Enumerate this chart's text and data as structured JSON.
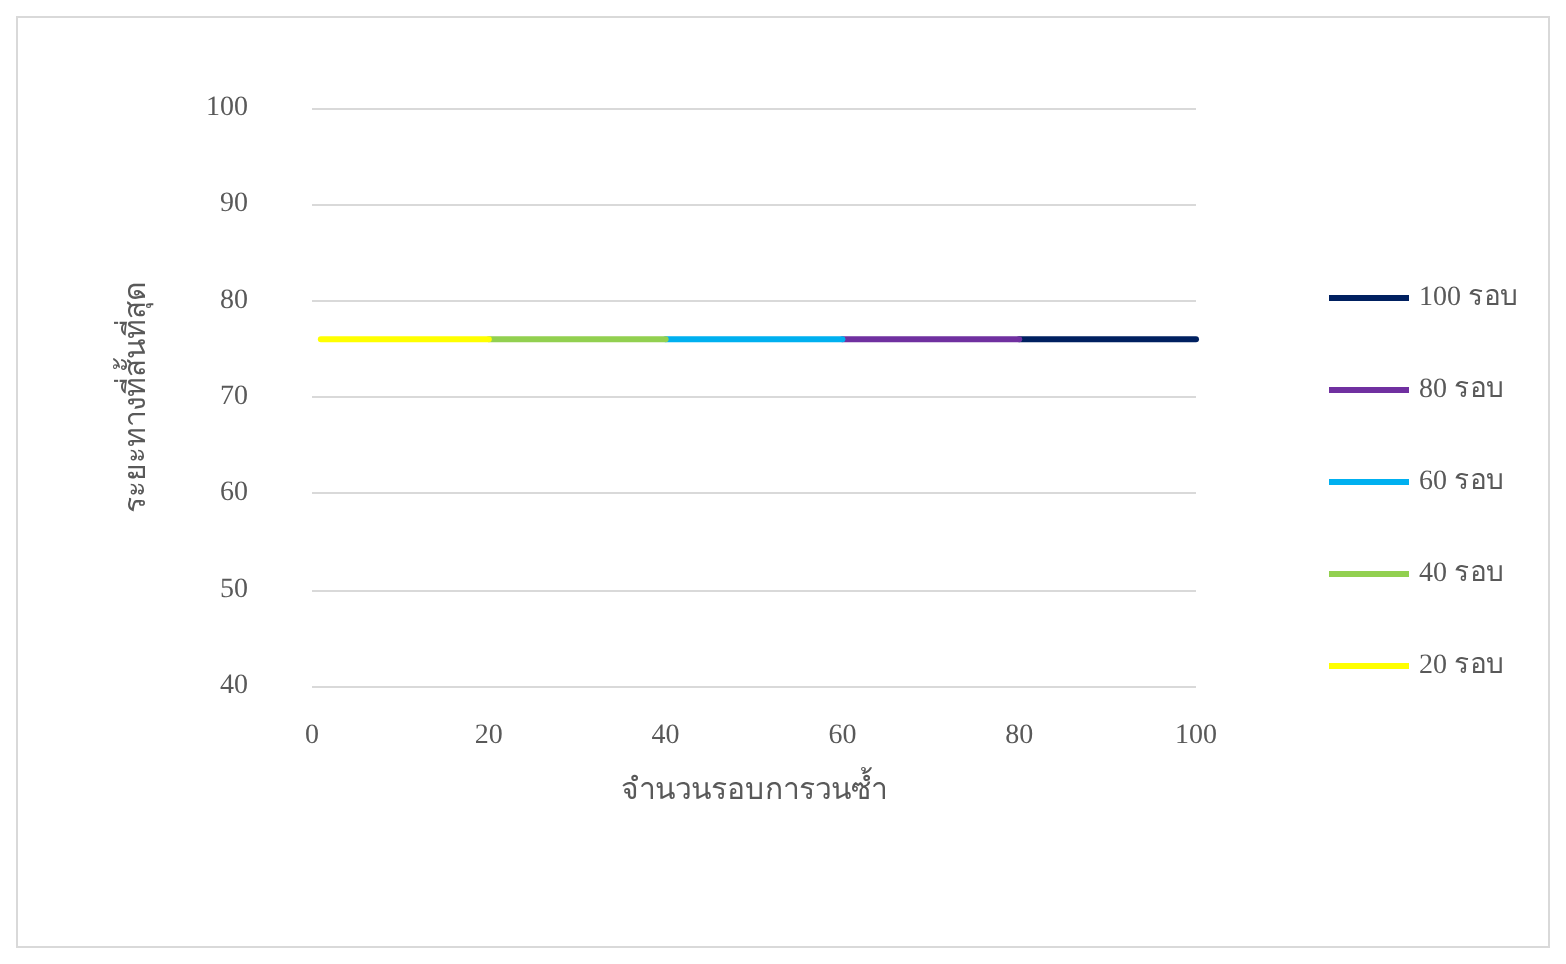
{
  "chart_data": {
    "type": "line",
    "xlabel": "จำนวนรอบการวนซ้ำ",
    "ylabel": "ระยะทางที่สั้นที่สุด",
    "series": [
      {
        "name": "100 รอบ",
        "color": "#002060",
        "x": [
          80,
          100
        ],
        "values": [
          76,
          76
        ]
      },
      {
        "name": "80 รอบ",
        "color": "#7030a0",
        "x": [
          60,
          80
        ],
        "values": [
          76,
          76
        ]
      },
      {
        "name": "60 รอบ",
        "color": "#00b0f0",
        "x": [
          40,
          60
        ],
        "values": [
          76,
          76
        ]
      },
      {
        "name": "40 รอบ",
        "color": "#92d050",
        "x": [
          20,
          40
        ],
        "values": [
          76,
          76
        ]
      },
      {
        "name": "20 รอบ",
        "color": "#ffff00",
        "x": [
          1,
          20
        ],
        "values": [
          76,
          76
        ]
      }
    ],
    "xlim": [
      0,
      100
    ],
    "xticks": [
      0,
      20,
      40,
      60,
      80,
      100
    ],
    "ylim": [
      40,
      100
    ],
    "yticks": [
      40,
      50,
      60,
      70,
      80,
      90,
      100
    ],
    "grid": "y",
    "legend": "right",
    "marker": "none",
    "line_style": "solid"
  }
}
